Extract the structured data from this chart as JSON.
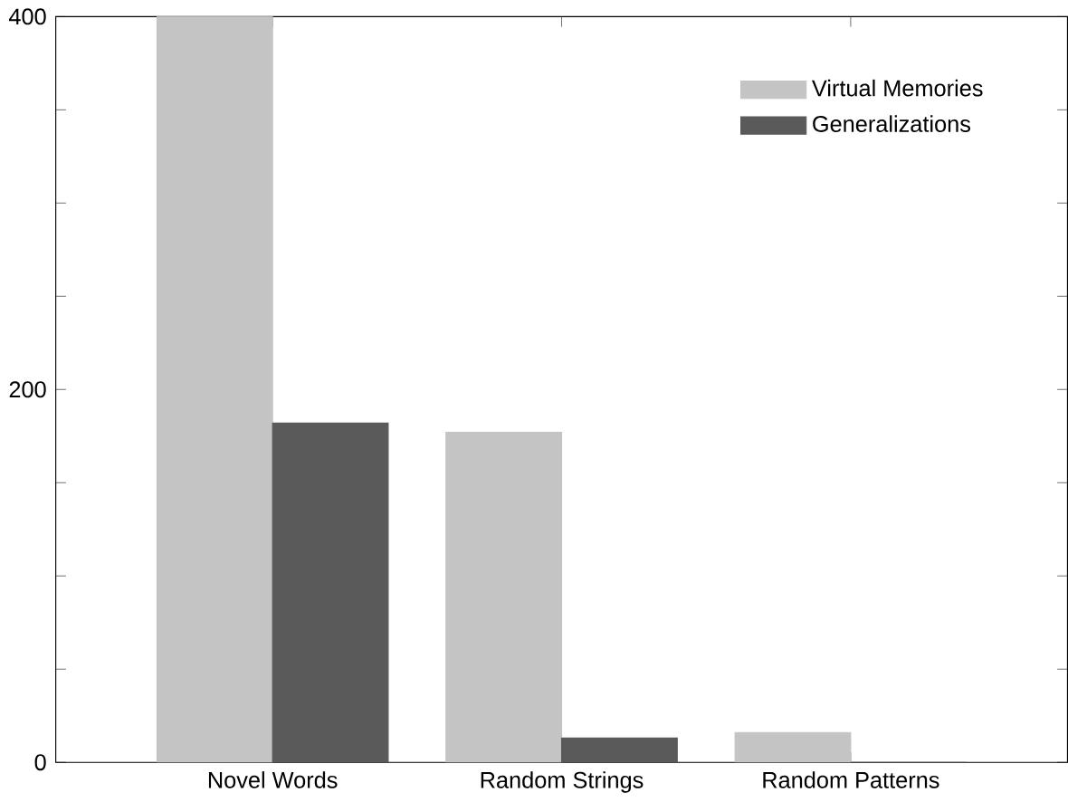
{
  "chart_data": {
    "type": "bar",
    "categories": [
      "Novel Words",
      "Random Strings",
      "Random Patterns"
    ],
    "series": [
      {
        "name": "Virtual Memories",
        "color": "#c4c4c4",
        "values": [
          400,
          177,
          16
        ]
      },
      {
        "name": "Generalizations",
        "color": "#5a5a5a",
        "values": [
          182,
          13,
          0
        ]
      }
    ],
    "ylim": [
      0,
      400
    ],
    "yticks": [
      0,
      {
        "value": 50,
        "label": null
      },
      {
        "value": 100,
        "label": null
      },
      {
        "value": 150,
        "label": null
      },
      200,
      {
        "value": 250,
        "label": null
      },
      {
        "value": 300,
        "label": null
      },
      {
        "value": 350,
        "label": null
      },
      400
    ],
    "grid": false,
    "legend": "top right"
  }
}
